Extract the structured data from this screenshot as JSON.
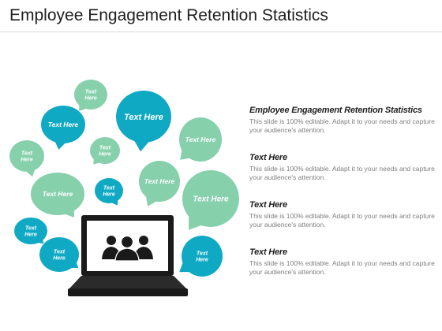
{
  "title": "Employee Engagement Retention Statistics",
  "colors": {
    "teal": "#0fa9c4",
    "green": "#86d0ac",
    "dark": "#1a1a1a"
  },
  "icons": [
    "laptop-icon",
    "team-people-icon"
  ],
  "bubbles": [
    {
      "label": "Text Here",
      "color": "green"
    },
    {
      "label": "Text Here",
      "color": "teal"
    },
    {
      "label": "Text Here",
      "color": "teal"
    },
    {
      "label": "Text Here",
      "color": "green"
    },
    {
      "label": "Text Here",
      "color": "green"
    },
    {
      "label": "Text Here",
      "color": "green"
    },
    {
      "label": "Text Here",
      "color": "green"
    },
    {
      "label": "Text Here",
      "color": "green"
    },
    {
      "label": "Text Here",
      "color": "teal"
    },
    {
      "label": "Text Here",
      "color": "green"
    },
    {
      "label": "Text Here",
      "color": "teal"
    },
    {
      "label": "Text Here",
      "color": "teal"
    },
    {
      "label": "Text Here",
      "color": "teal"
    }
  ],
  "info": [
    {
      "heading": "Employee Engagement Retention Statistics",
      "text": "This slide is 100% editable. Adapt it to your needs and capture your audience's attention."
    },
    {
      "heading": "Text Here",
      "text": "This slide is 100% editable. Adapt it to your needs and capture your audience's attention."
    },
    {
      "heading": "Text Here",
      "text": "This slide is 100% editable. Adapt it to your needs and capture your audience's attention."
    },
    {
      "heading": "Text Here",
      "text": "This slide is 100% editable. Adapt it to your needs and capture your audience's attention."
    }
  ]
}
